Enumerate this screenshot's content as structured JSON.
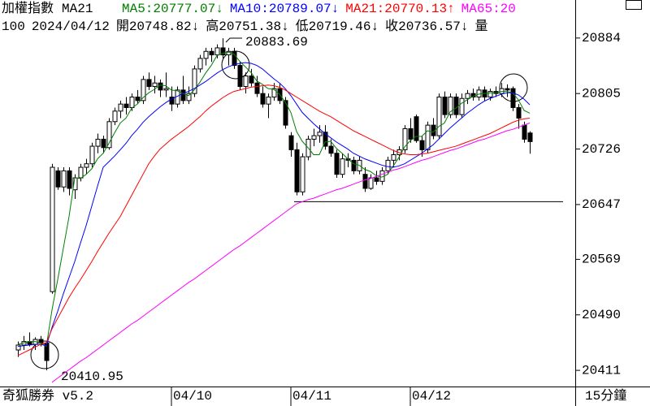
{
  "chart_data": {
    "type": "candlestick",
    "title": "加權指數",
    "indicator": "MA21",
    "info": [
      "100",
      "2024/04/12",
      "開20748.82↓",
      "高20751.38↓",
      "低20719.46↓",
      "收20736.57↓",
      "量"
    ],
    "software": "奇狐勝券 v5.2",
    "period": "15分鐘",
    "annotations": [
      "20883.69",
      "20410.95"
    ],
    "hline": 20651,
    "categories": [
      null,
      null,
      null,
      null,
      null,
      null,
      null,
      null,
      null,
      null,
      null,
      null,
      null,
      null,
      null,
      null,
      null,
      null,
      null,
      null,
      null,
      null,
      null,
      null,
      null,
      null,
      null,
      "04/10",
      null,
      null,
      null,
      null,
      null,
      null,
      null,
      null,
      null,
      null,
      null,
      null,
      null,
      null,
      null,
      null,
      null,
      null,
      null,
      null,
      "04/11",
      null,
      null,
      null,
      null,
      null,
      null,
      null,
      null,
      null,
      null,
      null,
      null,
      null,
      null,
      null,
      null,
      null,
      null,
      null,
      null,
      "04/12",
      null,
      null,
      null,
      null,
      null,
      null,
      null,
      null,
      null,
      null,
      null,
      null,
      null,
      null,
      null,
      null,
      null,
      null,
      null,
      null,
      null
    ],
    "open": [
      20440,
      20447,
      20452,
      20448,
      20455,
      20450,
      20523,
      20695,
      20672,
      20695,
      20668,
      20685,
      20700,
      20705,
      20730,
      20740,
      20728,
      20765,
      20780,
      20790,
      20785,
      20800,
      20795,
      20825,
      20815,
      20820,
      20810,
      20800,
      20790,
      20810,
      20795,
      20805,
      20840,
      20855,
      20865,
      20860,
      20870,
      20860,
      20865,
      20845,
      20815,
      20830,
      20820,
      20805,
      20790,
      20800,
      20812,
      20795,
      20745,
      20725,
      20665,
      20715,
      20740,
      20745,
      20750,
      20730,
      20720,
      20690,
      20712,
      20710,
      20695,
      20690,
      20670,
      20685,
      20680,
      20695,
      20710,
      20718,
      20725,
      20755,
      20772,
      20738,
      20725,
      20760,
      20745,
      20800,
      20775,
      20800,
      20775,
      20798,
      20805,
      20800,
      20810,
      20800,
      20808,
      20805,
      20812,
      20812,
      20785,
      20760,
      20748.82
    ],
    "high": [
      20452,
      20460,
      20465,
      20458,
      20460,
      20452,
      20705,
      20700,
      20700,
      20700,
      20690,
      20705,
      20712,
      20735,
      20748,
      20745,
      20770,
      20785,
      20795,
      20800,
      20805,
      20810,
      20830,
      20835,
      20830,
      20825,
      20835,
      20815,
      20815,
      20830,
      20815,
      20845,
      20860,
      20870,
      20870,
      20875,
      20883.69,
      20870,
      20870,
      20850,
      20835,
      20840,
      20830,
      20815,
      20805,
      20820,
      20820,
      20800,
      20750,
      20735,
      20720,
      20745,
      20755,
      20760,
      20760,
      20740,
      20725,
      20720,
      20720,
      20715,
      20715,
      20700,
      20690,
      20695,
      20700,
      20715,
      20725,
      20730,
      20760,
      20770,
      20775,
      20745,
      20765,
      20770,
      20805,
      20808,
      20805,
      20805,
      20805,
      20810,
      20812,
      20815,
      20815,
      20812,
      20815,
      20820,
      20818,
      20815,
      20790,
      20765,
      20751.38
    ],
    "low": [
      20430,
      20440,
      20445,
      20440,
      20445,
      20410.95,
      20520,
      20668,
      20665,
      20660,
      20655,
      20680,
      20690,
      20700,
      20720,
      20720,
      20725,
      20760,
      20770,
      20775,
      20780,
      20790,
      20790,
      20810,
      20805,
      20800,
      20800,
      20780,
      20785,
      20790,
      20790,
      20800,
      20835,
      20845,
      20850,
      20855,
      20855,
      20845,
      20840,
      20810,
      20805,
      20815,
      20800,
      20785,
      20770,
      20795,
      20790,
      20755,
      20715,
      20660,
      20660,
      20710,
      20730,
      20735,
      20725,
      20715,
      20685,
      20685,
      20700,
      20690,
      20690,
      20665,
      20668,
      20675,
      20675,
      20690,
      20700,
      20710,
      20720,
      20735,
      20735,
      20715,
      20720,
      20740,
      20740,
      20770,
      20770,
      20770,
      20770,
      20790,
      20795,
      20795,
      20795,
      20795,
      20800,
      20800,
      20800,
      20780,
      20755,
      20735,
      20719.46
    ],
    "close": [
      20447,
      20452,
      20448,
      20455,
      20450,
      20425,
      20700,
      20672,
      20695,
      20670,
      20685,
      20700,
      20705,
      20730,
      20740,
      20728,
      20765,
      20780,
      20790,
      20785,
      20800,
      20795,
      20825,
      20815,
      20820,
      20810,
      20812,
      20790,
      20810,
      20795,
      20805,
      20840,
      20855,
      20865,
      20860,
      20870,
      20860,
      20865,
      20845,
      20815,
      20830,
      20820,
      20805,
      20790,
      20800,
      20812,
      20795,
      20760,
      20725,
      20665,
      20715,
      20740,
      20745,
      20750,
      20730,
      20720,
      20690,
      20712,
      20710,
      20695,
      20710,
      20670,
      20685,
      20680,
      20695,
      20710,
      20718,
      20725,
      20755,
      20740,
      20738,
      20725,
      20760,
      20745,
      20800,
      20775,
      20800,
      20775,
      20798,
      20805,
      20800,
      20810,
      20800,
      20808,
      20805,
      20812,
      20810,
      20785,
      20770,
      20740,
      20736.57
    ],
    "series": [
      {
        "name": "MA5:20777.07↓",
        "color": "#008000",
        "values": [
          20448,
          20450,
          20452,
          20452,
          20450,
          20445,
          20497,
          20540,
          20585,
          20630,
          20685,
          20684,
          20690,
          20698,
          20712,
          20720,
          20734,
          20749,
          20763,
          20770,
          20784,
          20790,
          20799,
          20806,
          20811,
          20817,
          20816,
          20810,
          20809,
          20805,
          20802,
          20810,
          20821,
          20834,
          20845,
          20859,
          20862,
          20864,
          20861,
          20851,
          20843,
          20835,
          20823,
          20818,
          20812,
          20811,
          20804,
          20793,
          20778,
          20751,
          20737,
          20728,
          20718,
          20718,
          20736,
          20737,
          20727,
          20720,
          20712,
          20705,
          20703,
          20697,
          20694,
          20688,
          20686,
          20690,
          20702,
          20714,
          20729,
          20738,
          20744,
          20744,
          20752,
          20750,
          20758,
          20763,
          20779,
          20784,
          20791,
          20796,
          20801,
          20804,
          20805,
          20806,
          20806,
          20808,
          20808,
          20806,
          20796,
          20781,
          20777
        ]
      },
      {
        "name": "MA10:20789.07↓",
        "color": "#0000ff",
        "values": [
          20445,
          20446,
          20447,
          20448,
          20448,
          20446,
          20472,
          20495,
          20520,
          20543,
          20566,
          20592,
          20617,
          20645,
          20673,
          20700,
          20708,
          20716,
          20725,
          20734,
          20745,
          20754,
          20764,
          20772,
          20779,
          20786,
          20792,
          20797,
          20801,
          20805,
          20808,
          20812,
          20817,
          20822,
          20828,
          20834,
          20839,
          20843,
          20846,
          20848,
          20849,
          20848,
          20845,
          20840,
          20833,
          20826,
          20820,
          20812,
          20802,
          20790,
          20778,
          20770,
          20762,
          20755,
          20748,
          20742,
          20736,
          20731,
          20726,
          20720,
          20716,
          20712,
          20709,
          20706,
          20703,
          20701,
          20700,
          20702,
          20705,
          20710,
          20715,
          20720,
          20726,
          20732,
          20740,
          20748,
          20756,
          20763,
          20770,
          20777,
          20783,
          20789,
          20794,
          20798,
          20801,
          20804,
          20806,
          20806,
          20803,
          20797,
          20789
        ]
      },
      {
        "name": "MA21:20770.13↑",
        "color": "#ff0000",
        "values": [
          20432,
          20436,
          20440,
          20444,
          20448,
          20450,
          20470,
          20485,
          20500,
          20515,
          20528,
          20540,
          20553,
          20566,
          20580,
          20593,
          20606,
          20618,
          20630,
          20645,
          20660,
          20675,
          20690,
          20705,
          20716,
          20726,
          20733,
          20740,
          20746,
          20752,
          20758,
          20765,
          20772,
          20780,
          20787,
          20793,
          20799,
          20804,
          20808,
          20810,
          20812,
          20814,
          20815,
          20816,
          20817,
          20816,
          20814,
          20810,
          20805,
          20800,
          20795,
          20790,
          20785,
          20780,
          20776,
          20772,
          20767,
          20762,
          20757,
          20752,
          20748,
          20744,
          20740,
          20736,
          20732,
          20728,
          20724,
          20721,
          20719,
          20718,
          20718,
          20719,
          20720,
          20722,
          20724,
          20726,
          20728,
          20730,
          20733,
          20736,
          20739,
          20742,
          20745,
          20748,
          20752,
          20756,
          20760,
          20764,
          20767,
          20769,
          20770
        ]
      },
      {
        "name": "MA65:20",
        "color": "#ff00ff",
        "values": [
          null,
          null,
          null,
          null,
          null,
          null,
          20394,
          20400,
          20406,
          20412,
          20418,
          20424,
          20429,
          20435,
          20441,
          20447,
          20453,
          20459,
          20465,
          20471,
          20477,
          20482,
          20488,
          20494,
          20500,
          20506,
          20512,
          20518,
          20524,
          20530,
          20536,
          20541,
          20547,
          20553,
          20559,
          20565,
          20571,
          20577,
          20583,
          20588,
          20594,
          20600,
          20606,
          20612,
          20618,
          20624,
          20630,
          20636,
          20642,
          20648,
          20651,
          20654,
          20656,
          20659,
          20662,
          20665,
          20668,
          20670,
          20673,
          20676,
          20679,
          20682,
          20684,
          20687,
          20690,
          20693,
          20696,
          20698,
          20701,
          20704,
          20707,
          20710,
          20712,
          20715,
          20718,
          20721,
          20724,
          20726,
          20729,
          20732,
          20735,
          20738,
          20740,
          20743,
          20746,
          20749,
          20752,
          20754,
          20757,
          20760,
          20763
        ]
      }
    ],
    "ylim": [
      20388,
      20915
    ],
    "yticks": [
      20411,
      20490,
      20569,
      20647,
      20726,
      20805,
      20884
    ]
  }
}
